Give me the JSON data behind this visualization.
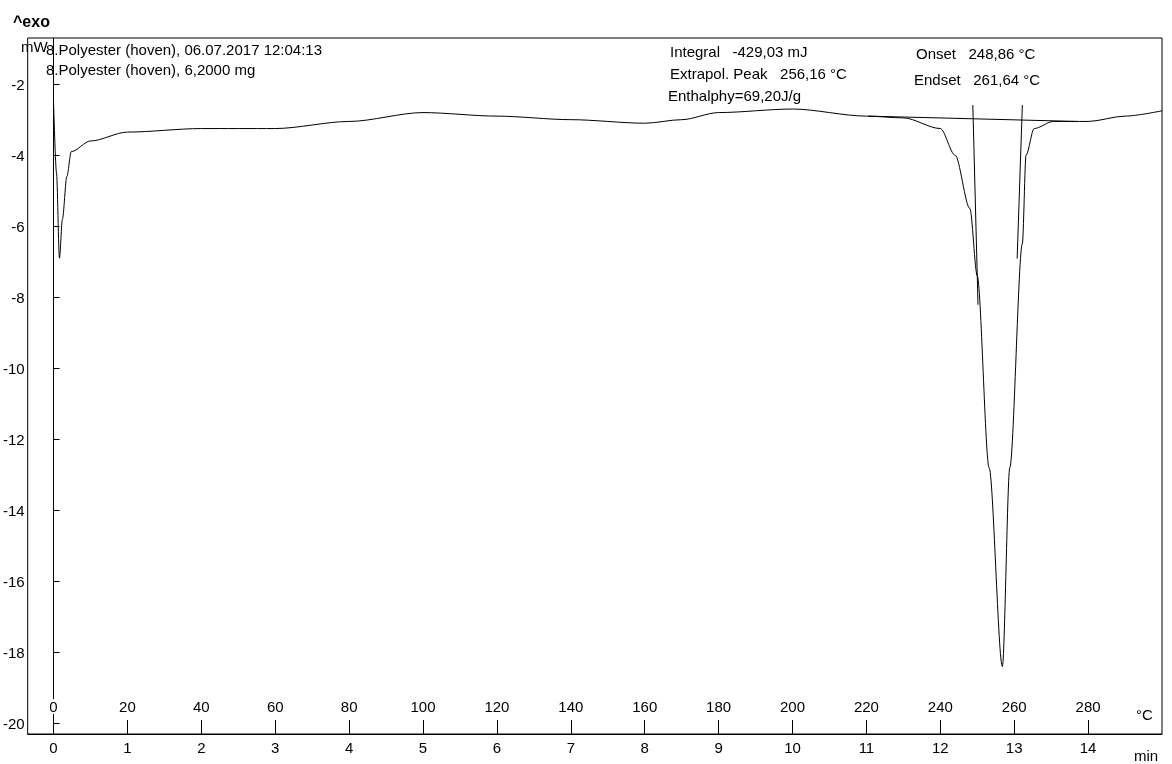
{
  "chart_data": {
    "type": "line",
    "title": "^exo",
    "xlabel": "min",
    "x2label": "°C",
    "ylabel": "mW",
    "annotations": [
      "8.Polyester (hoven), 06.07.2017 12:04:13",
      "8.Polyester (hoven), 6,2000 mg",
      "Integral   -429,03 mJ",
      "Extrapol. Peak   256,16 °C",
      "Enthalphy=69,20J/g",
      "Onset   248,86 °C",
      "Endset   261,64 °C"
    ],
    "xlim": [
      -0.35,
      15
    ],
    "xticks": [
      0,
      1,
      2,
      3,
      4,
      5,
      6,
      7,
      8,
      9,
      10,
      11,
      12,
      13,
      14
    ],
    "x2lim": [
      -7,
      300
    ],
    "x2ticks": [
      0,
      20,
      40,
      60,
      80,
      100,
      120,
      140,
      160,
      180,
      200,
      220,
      240,
      260,
      280
    ],
    "ylim": [
      -20.3,
      -0.7
    ],
    "yticks": [
      -20,
      -18,
      -16,
      -14,
      -12,
      -10,
      -8,
      -6,
      -4,
      -2
    ],
    "marker": "none",
    "line_style": "solid",
    "series": [
      {
        "color": "#000000",
        "x": [
          0,
          0.04,
          0.08,
          0.12,
          0.18,
          0.24,
          0.5,
          1,
          2,
          3,
          4,
          5,
          6,
          7,
          8,
          8.5,
          9,
          10,
          11,
          11.5,
          12,
          12.2,
          12.4,
          12.5,
          12.66,
          12.84,
          12.94,
          13.11,
          13.16,
          13.27,
          13.53,
          14,
          14.5,
          15
        ],
        "values": [
          -2.5,
          -4.5,
          -6.9,
          -5.8,
          -4.6,
          -3.9,
          -3.6,
          -3.35,
          -3.25,
          -3.25,
          -3.05,
          -2.8,
          -2.9,
          -3.0,
          -3.1,
          -3.0,
          -2.8,
          -2.7,
          -2.9,
          -2.95,
          -3.25,
          -4.0,
          -5.5,
          -7.4,
          -12.8,
          -18.4,
          -12.8,
          -6.5,
          -4.0,
          -3.25,
          -3.05,
          -3.05,
          -2.9,
          -2.75
        ]
      },
      {
        "color": "#000000",
        "x": [
          11.03,
          13.85
        ],
        "values": [
          -2.9,
          -3.05
        ]
      },
      {
        "color": "#000000",
        "x": [
          12.44,
          12.51
        ],
        "values": [
          -2.6,
          -8.2
        ]
      },
      {
        "color": "#000000",
        "x": [
          13.11,
          13.04
        ],
        "values": [
          -2.6,
          -6.9
        ]
      }
    ]
  }
}
